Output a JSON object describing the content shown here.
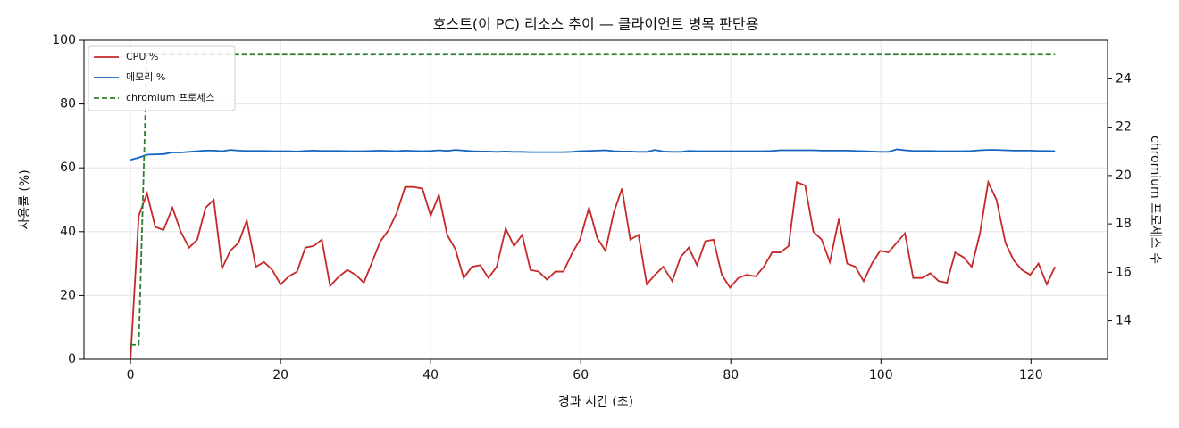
{
  "chart_data": {
    "type": "line",
    "title": "호스트(이 PC) 리소스 추이 — 클라이언트 병목 판단용",
    "xlabel": "경과 시간 (초)",
    "ylabel": "사용률 (%)",
    "y2label": "chromium 프로세스 수",
    "xlim": [
      -6.2,
      130.2
    ],
    "xticks": [
      0,
      20,
      40,
      60,
      80,
      100,
      120
    ],
    "ylim": [
      0,
      100
    ],
    "yticks": [
      0,
      20,
      40,
      60,
      80,
      100
    ],
    "y2lim": [
      12.4,
      25.6
    ],
    "y2ticks": [
      14,
      16,
      18,
      20,
      22,
      24
    ],
    "grid": true,
    "legend": "upper left",
    "x": [
      0,
      1.1,
      2.2,
      3.3,
      4.4,
      5.6,
      6.7,
      7.8,
      8.9,
      10.0,
      11.1,
      12.2,
      13.3,
      14.4,
      15.5,
      16.7,
      17.8,
      18.9,
      20.0,
      21.1,
      22.2,
      23.3,
      24.4,
      25.5,
      26.6,
      27.8,
      28.9,
      30.0,
      31.1,
      32.2,
      33.3,
      34.4,
      35.5,
      36.6,
      37.7,
      38.9,
      40.0,
      41.1,
      42.2,
      43.3,
      44.4,
      45.5,
      46.6,
      47.7,
      48.8,
      50.0,
      51.1,
      52.2,
      53.3,
      54.4,
      55.5,
      56.6,
      57.7,
      58.8,
      59.9,
      61.1,
      62.2,
      63.3,
      64.4,
      65.5,
      66.6,
      67.7,
      68.8,
      69.9,
      71.0,
      72.2,
      73.3,
      74.4,
      75.5,
      76.6,
      77.7,
      78.8,
      79.9,
      81.0,
      82.1,
      83.3,
      84.4,
      85.5,
      86.6,
      87.7,
      88.8,
      89.9,
      91.0,
      92.1,
      93.2,
      94.4,
      95.5,
      96.6,
      97.7,
      98.8,
      99.9,
      101.0,
      102.1,
      103.2,
      104.3,
      105.5,
      106.6,
      107.7,
      108.8,
      109.9,
      111.0,
      112.1,
      113.2,
      114.3,
      115.4,
      116.6,
      117.7,
      118.8,
      119.9,
      121.0,
      122.1,
      123.2
    ],
    "series": [
      {
        "name": "CPU %",
        "color": "#c62828",
        "dashed": false,
        "values": [
          0,
          45,
          52,
          41.5,
          40.5,
          47.5,
          40,
          35,
          37.5,
          47.5,
          50,
          28.5,
          34,
          36.5,
          43.5,
          29,
          30.5,
          28,
          23.5,
          26,
          27.5,
          35,
          35.5,
          37.5,
          23,
          26,
          28,
          26.5,
          24,
          30.5,
          37,
          40.5,
          46,
          54,
          54,
          53.5,
          45,
          51.5,
          39,
          34.5,
          25.5,
          29,
          29.5,
          25.5,
          29,
          41,
          35.5,
          39,
          28,
          27.5,
          25,
          27.5,
          27.5,
          33,
          37.5,
          47.5,
          38,
          34,
          46,
          53.5,
          37.5,
          39,
          23.5,
          26.5,
          29,
          24.5,
          32,
          35,
          29.5,
          37,
          37.5,
          26.5,
          22.5,
          25.5,
          26.5,
          26,
          29,
          33.5,
          33.5,
          35.5,
          55.5,
          54.5,
          40,
          37.5,
          30.5,
          44,
          30,
          29,
          24.5,
          30,
          34,
          33.5,
          36.5,
          39.5,
          25.5,
          25.5,
          27,
          24.5,
          24,
          33.5,
          32,
          29,
          39.5,
          55.5,
          50,
          36.5,
          31,
          28,
          26.5,
          30,
          23.5,
          29
        ]
      },
      {
        "name": "메모리 %",
        "color": "#1565c0",
        "dashed": false,
        "values": [
          62.5,
          63.2,
          64.1,
          64.2,
          64.3,
          64.8,
          64.8,
          65.0,
          65.2,
          65.4,
          65.4,
          65.2,
          65.6,
          65.4,
          65.3,
          65.3,
          65.3,
          65.2,
          65.2,
          65.2,
          65.1,
          65.3,
          65.4,
          65.3,
          65.3,
          65.3,
          65.2,
          65.2,
          65.2,
          65.3,
          65.4,
          65.3,
          65.2,
          65.4,
          65.3,
          65.2,
          65.3,
          65.5,
          65.3,
          65.6,
          65.4,
          65.2,
          65.1,
          65.1,
          65.0,
          65.1,
          65.0,
          65.0,
          64.9,
          64.9,
          64.9,
          64.9,
          64.9,
          65.0,
          65.2,
          65.3,
          65.4,
          65.5,
          65.2,
          65.1,
          65.1,
          65.0,
          65.0,
          65.6,
          65.1,
          65.0,
          65.0,
          65.3,
          65.2,
          65.2,
          65.2,
          65.2,
          65.2,
          65.2,
          65.2,
          65.2,
          65.2,
          65.3,
          65.5,
          65.5,
          65.5,
          65.5,
          65.5,
          65.4,
          65.4,
          65.4,
          65.4,
          65.3,
          65.2,
          65.1,
          65.0,
          65.0,
          65.8,
          65.5,
          65.3,
          65.3,
          65.3,
          65.2,
          65.2,
          65.2,
          65.2,
          65.3,
          65.5,
          65.6,
          65.6,
          65.5,
          65.4,
          65.4,
          65.4,
          65.3,
          65.3,
          65.2
        ]
      },
      {
        "name": "chromium 프로세스",
        "color": "#2e7d32",
        "dashed": true,
        "axis": "y2",
        "values": [
          13,
          13,
          25,
          25,
          25,
          25,
          25,
          25,
          25,
          25,
          25,
          25,
          25,
          25,
          25,
          25,
          25,
          25,
          25,
          25,
          25,
          25,
          25,
          25,
          25,
          25,
          25,
          25,
          25,
          25,
          25,
          25,
          25,
          25,
          25,
          25,
          25,
          25,
          25,
          25,
          25,
          25,
          25,
          25,
          25,
          25,
          25,
          25,
          25,
          25,
          25,
          25,
          25,
          25,
          25,
          25,
          25,
          25,
          25,
          25,
          25,
          25,
          25,
          25,
          25,
          25,
          25,
          25,
          25,
          25,
          25,
          25,
          25,
          25,
          25,
          25,
          25,
          25,
          25,
          25,
          25,
          25,
          25,
          25,
          25,
          25,
          25,
          25,
          25,
          25,
          25,
          25,
          25,
          25,
          25,
          25,
          25,
          25,
          25,
          25,
          25,
          25,
          25,
          25,
          25,
          25,
          25,
          25,
          25,
          25,
          25,
          25
        ]
      }
    ]
  }
}
